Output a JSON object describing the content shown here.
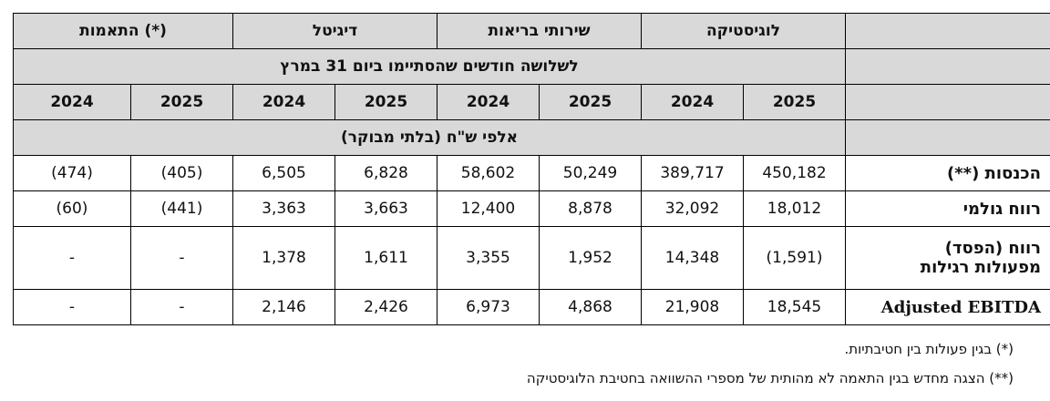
{
  "table": {
    "segments": [
      "התאמות (*)",
      "דיגיטל",
      "שירותי בריאות",
      "לוגיסטיקה"
    ],
    "period": "לשלושה חודשים שהסתיימו ביום 31 במרץ",
    "years": [
      "2024",
      "2025",
      "2024",
      "2025",
      "2024",
      "2025",
      "2024",
      "2025"
    ],
    "unit": "אלפי ש\"ח (בלתי מבוקר)",
    "rows": [
      {
        "label": "הכנסות (**)",
        "values": [
          "(474)",
          "(405)",
          "6,505",
          "6,828",
          "58,602",
          "50,249",
          "389,717",
          "450,182"
        ]
      },
      {
        "label": "רווח גולמי",
        "values": [
          "(60)",
          "(441)",
          "3,363",
          "3,663",
          "12,400",
          "8,878",
          "32,092",
          "18,012"
        ]
      },
      {
        "label_line1": "רווח (הפסד)",
        "label_line2": "מפעולות רגילות",
        "values": [
          "-",
          "-",
          "1,378",
          "1,611",
          "3,355",
          "1,952",
          "14,348",
          "(1,591)"
        ]
      },
      {
        "label": "Adjusted EBITDA",
        "values": [
          "-",
          "-",
          "2,146",
          "2,426",
          "6,973",
          "4,868",
          "21,908",
          "18,545"
        ]
      }
    ]
  },
  "notes": {
    "n1": "(*) בגין פעולות בין חטיבתיות.",
    "n2": "(**) הצגה מחדש בגין התאמה לא מהותית של מספרי ההשוואה בחטיבת הלוגיסטיקה"
  }
}
